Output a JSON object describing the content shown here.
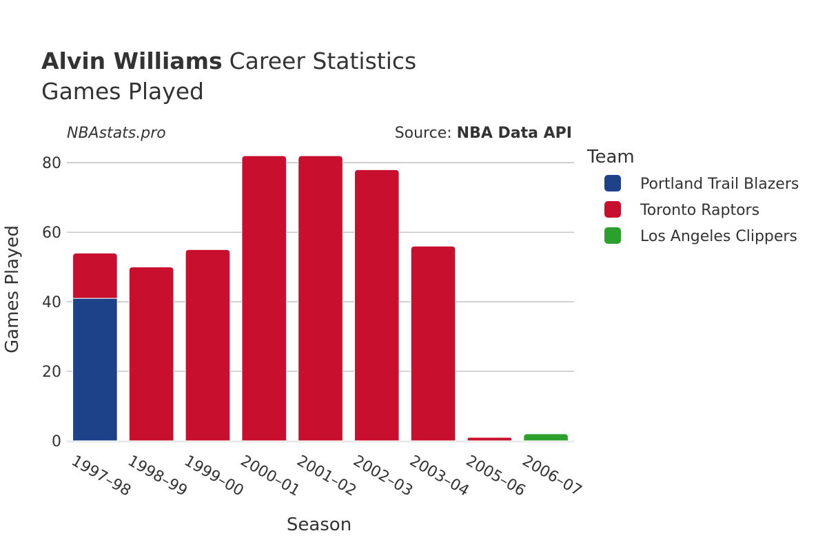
{
  "header": {
    "title_bold": "Alvin Williams",
    "title_rest": "Career Statistics",
    "subtitle": "Games Played",
    "watermark": "NBAstats.pro",
    "source_prefix": "Source: ",
    "source_name": "NBA Data API"
  },
  "legend": {
    "title": "Team",
    "items": [
      {
        "label": "Portland Trail Blazers",
        "color": "#1d428a"
      },
      {
        "label": "Toronto Raptors",
        "color": "#c8102e"
      },
      {
        "label": "Los Angeles Clippers",
        "color": "#2ca02c"
      }
    ]
  },
  "chart_data": {
    "type": "bar",
    "stacked": true,
    "categories": [
      "1997–98",
      "1998–99",
      "1999–00",
      "2000–01",
      "2001–02",
      "2002–03",
      "2003–04",
      "2005–06",
      "2006–07"
    ],
    "series": [
      {
        "name": "Portland Trail Blazers",
        "color": "#1d428a",
        "values": [
          41,
          0,
          0,
          0,
          0,
          0,
          0,
          0,
          0
        ]
      },
      {
        "name": "Toronto Raptors",
        "color": "#c8102e",
        "values": [
          13,
          50,
          55,
          82,
          82,
          78,
          56,
          1,
          0
        ]
      },
      {
        "name": "Los Angeles Clippers",
        "color": "#2ca02c",
        "values": [
          0,
          0,
          0,
          0,
          0,
          0,
          0,
          0,
          2
        ]
      }
    ],
    "xlabel": "Season",
    "ylabel": "Games Played",
    "ylim": [
      0,
      85
    ],
    "yticks": [
      0,
      20,
      40,
      60,
      80
    ],
    "grid": true,
    "legend_position": "right"
  }
}
